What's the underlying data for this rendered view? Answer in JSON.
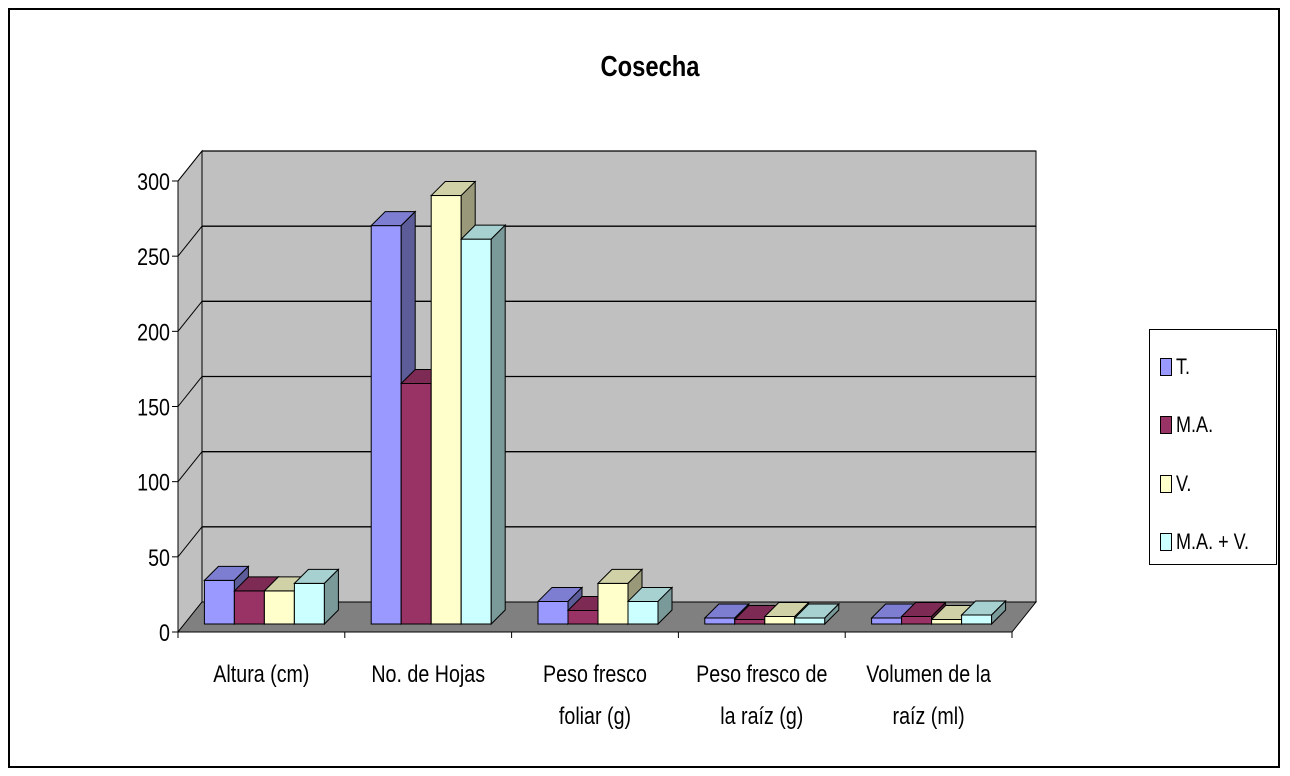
{
  "chart_data": {
    "type": "bar",
    "title": "Cosecha",
    "xlabel": "",
    "ylabel": "",
    "ylim": [
      0,
      300
    ],
    "yticks": [
      0,
      50,
      100,
      150,
      200,
      250,
      300
    ],
    "categories": [
      [
        "Altura (cm)"
      ],
      [
        "No. de Hojas"
      ],
      [
        "Peso fresco",
        "foliar (g)"
      ],
      [
        "Peso fresco de",
        "la raíz (g)"
      ],
      [
        "Volumen de la",
        "raíz (ml)"
      ]
    ],
    "series": [
      {
        "name": "T.",
        "color": "#9999ff",
        "values": [
          29,
          265,
          15,
          4,
          4
        ]
      },
      {
        "name": "M.A.",
        "color": "#993366",
        "values": [
          22,
          160,
          9,
          3,
          5
        ]
      },
      {
        "name": "V.",
        "color": "#ffffcc",
        "values": [
          22,
          285,
          27,
          5,
          3
        ]
      },
      {
        "name": "M.A. + V.",
        "color": "#ccffff",
        "values": [
          27,
          256,
          15,
          4,
          6
        ]
      }
    ],
    "grid": true,
    "style": "3d-clustered",
    "wall_color": "#c0c0c0",
    "floor_color": "#808080",
    "legend_position": "right"
  }
}
